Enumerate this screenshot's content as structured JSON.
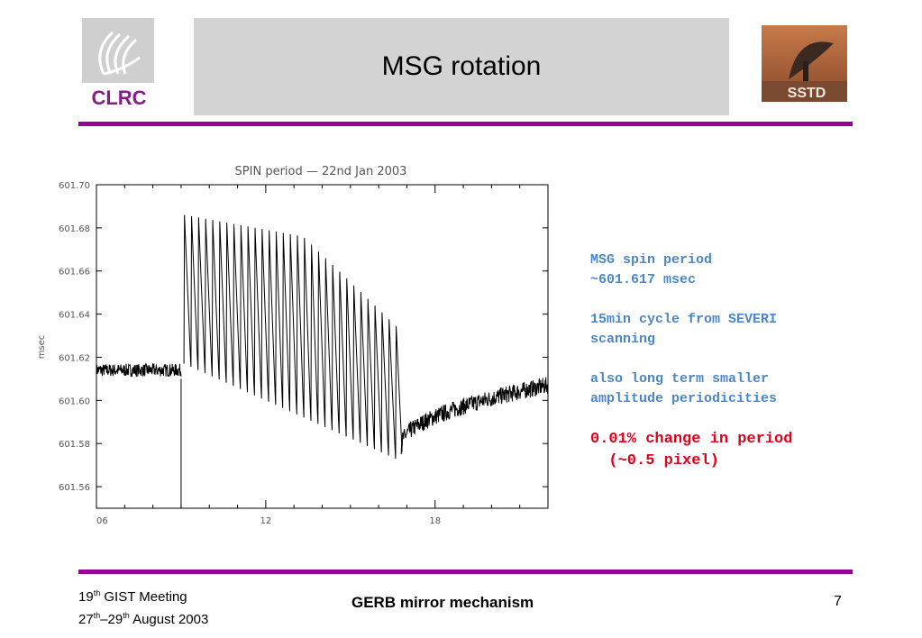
{
  "slide": {
    "title": "MSG rotation",
    "logo_left_text": "CLRC",
    "logo_right_text": "SSTD",
    "accent_color": "#990099"
  },
  "notes": [
    {
      "text": "MSG spin period\n~601.617 msec",
      "color": "#4a86c8"
    },
    {
      "text": "15min cycle from SEVERI\nscanning",
      "color": "#4a86c8"
    },
    {
      "text": "also long term smaller\namplitude periodicities",
      "color": "#4a86c8"
    },
    {
      "text": "0.01% change in period\n  (~0.5 pixel)",
      "color": "#e0001a"
    }
  ],
  "footer": {
    "meeting_num": "19",
    "meeting_sup": "th",
    "meeting_rest": " GIST Meeting",
    "date_a": "27",
    "date_a_sup": "th",
    "date_sep": "–29",
    "date_b_sup": "th",
    "date_rest": " August 2003",
    "center": "GERB mirror mechanism",
    "page": "7"
  },
  "chart_data": {
    "type": "line",
    "title": "SPIN period — 22nd Jan 2003",
    "xlabel": "",
    "ylabel": "msec",
    "xlim": [
      6,
      22
    ],
    "ylim": [
      601.55,
      601.7
    ],
    "x_ticks": [
      6,
      12,
      18
    ],
    "x_tick_labels": [
      "06",
      "12",
      "18"
    ],
    "y_ticks": [
      601.56,
      601.58,
      601.6,
      601.62,
      601.64,
      601.66,
      601.68,
      601.7
    ],
    "y_tick_labels": [
      "601.56",
      "601.58",
      "601.60",
      "601.62",
      "601.64",
      "601.66",
      "601.68",
      "601.70"
    ],
    "grid": false,
    "series_color": "#000000",
    "series": [
      {
        "segments": [
          {
            "kind": "noisy_flat",
            "x": [
              6.0,
              9.0
            ],
            "center": 601.614,
            "band": 0.003
          },
          {
            "kind": "spike",
            "x": 9.0,
            "y": [
              601.55,
              601.61
            ]
          },
          {
            "kind": "sawtooth",
            "x": [
              9.1,
              16.8
            ],
            "period": 0.25,
            "top_start": 601.686,
            "top_end": 601.676,
            "top_x_break": 13.3,
            "top_final": 601.632,
            "bottom_start": 601.617,
            "bottom_end": 601.573
          },
          {
            "kind": "noisy_recovery",
            "x": [
              16.8,
              22.0
            ],
            "start": 601.579,
            "end": 601.607,
            "band": 0.004
          }
        ]
      }
    ]
  }
}
